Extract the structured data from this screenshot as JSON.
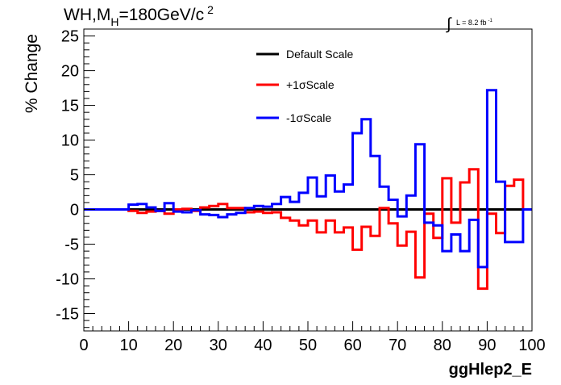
{
  "chart_data": {
    "type": "line",
    "title": "WH,M",
    "title_sub": "H",
    "title_rest": "=180GeV/c",
    "title_sup": "2",
    "lumi_label": "L = 8.2 fb",
    "lumi_sup": "-1",
    "xlabel": "ggHlep2_E",
    "ylabel": "% Change",
    "xlim": [
      0,
      100
    ],
    "ylim": [
      -17.5,
      26
    ],
    "x_ticks": [
      "0",
      "10",
      "20",
      "30",
      "40",
      "50",
      "60",
      "70",
      "80",
      "90",
      "100"
    ],
    "y_ticks": [
      "-15",
      "-10",
      "-5",
      "0",
      "5",
      "10",
      "15",
      "20",
      "25"
    ],
    "legend_position": "top-center",
    "bin_edges": [
      0,
      2,
      4,
      6,
      8,
      10,
      12,
      14,
      16,
      18,
      20,
      22,
      24,
      26,
      28,
      30,
      32,
      34,
      36,
      38,
      40,
      42,
      44,
      46,
      48,
      50,
      52,
      54,
      56,
      58,
      60,
      62,
      64,
      66,
      68,
      70,
      72,
      74,
      76,
      78,
      80,
      82,
      84,
      86,
      88,
      90,
      92,
      94,
      96,
      98,
      100
    ],
    "series": [
      {
        "name": "Default Scale",
        "color": "#000000",
        "values": [
          0,
          0,
          0,
          0,
          0,
          0,
          0,
          0,
          0,
          0,
          0,
          0,
          0,
          0,
          0,
          0,
          0,
          0,
          0,
          0,
          0,
          0,
          0,
          0,
          0,
          0,
          0,
          0,
          0,
          0,
          0,
          0,
          0,
          0,
          0,
          0,
          0,
          0,
          0,
          0,
          0,
          0,
          0,
          0,
          0,
          0,
          0,
          0,
          0,
          0
        ]
      },
      {
        "name": "+1σScale",
        "color": "#ff0000",
        "values": [
          0,
          0,
          0,
          0,
          0,
          -0.2,
          -0.5,
          -0.3,
          -0.2,
          -0.6,
          0,
          0.1,
          -0.2,
          0.3,
          0.5,
          0.8,
          0.2,
          0.2,
          -0.4,
          -0.3,
          -0.5,
          -0.4,
          -1.2,
          -1.6,
          -2.3,
          -1.6,
          -3.3,
          -1.6,
          -3.3,
          -2.6,
          -5.8,
          -2.5,
          -3.8,
          0.2,
          -2.0,
          -5.2,
          -3.2,
          -9.8,
          -0.6,
          -4.1,
          4.5,
          -1.9,
          3.9,
          5.8,
          -11.4,
          -0.6,
          -3.4,
          3.4,
          4.3,
          0
        ]
      },
      {
        "name": "-1σScale",
        "color": "#0000ff",
        "values": [
          0,
          0,
          0,
          0,
          0,
          0.7,
          0.8,
          0.3,
          -0.2,
          0.9,
          -0.3,
          -0.4,
          -0.1,
          -0.7,
          -0.8,
          -1.1,
          -0.7,
          -0.5,
          0.2,
          0.5,
          0.4,
          0.8,
          1.8,
          1.1,
          2.4,
          4.6,
          1.9,
          4.9,
          2.6,
          3.6,
          11,
          13,
          7.7,
          3.3,
          1.4,
          -1.0,
          2.0,
          9.4,
          -1.9,
          -2.3,
          -6.0,
          -3.6,
          -6.0,
          -1.5,
          -8.3,
          17.2,
          4.0,
          -4.7,
          -4.7,
          0
        ]
      }
    ]
  }
}
